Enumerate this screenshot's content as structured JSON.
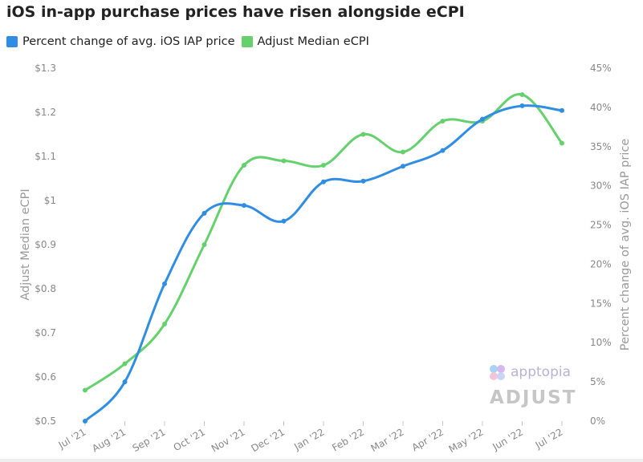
{
  "chart_data": {
    "type": "line",
    "title": "iOS in-app purchase prices have risen alongside eCPI",
    "categories": [
      "Jul '21",
      "Aug '21",
      "Sep '21",
      "Oct '21",
      "Nov '21",
      "Dec '21",
      "Jan '22",
      "Feb '22",
      "Mar '22",
      "Apr '22",
      "May '22",
      "Jun '22",
      "Jul '22"
    ],
    "series": [
      {
        "name": "Percent change of avg. iOS IAP price",
        "axis": "right",
        "color": "#2f8de4",
        "values": [
          0,
          5,
          17.5,
          26.5,
          27.5,
          25.5,
          30.5,
          30.6,
          32.5,
          34.5,
          38.5,
          40.2,
          39.6
        ]
      },
      {
        "name": "Adjust Median eCPI",
        "axis": "left",
        "color": "#65d16d",
        "values": [
          0.57,
          0.63,
          0.72,
          0.9,
          1.08,
          1.09,
          1.08,
          1.15,
          1.11,
          1.18,
          1.18,
          1.24,
          1.13
        ]
      }
    ],
    "ylabel": "Adjust Median eCPI",
    "ylim": [
      0.5,
      1.3
    ],
    "yticks": [
      "$0.5",
      "$0.6",
      "$0.7",
      "$0.8",
      "$0.9",
      "$1",
      "$1.1",
      "$1.2",
      "$1.3"
    ],
    "y2label": "Percent change of avg. iOS IAP price",
    "y2lim": [
      0,
      45
    ],
    "y2ticks": [
      "0%",
      "5%",
      "10%",
      "15%",
      "20%",
      "25%",
      "30%",
      "35%",
      "40%",
      "45%"
    ],
    "grid": false,
    "legend": "top-left"
  },
  "logos": {
    "apptopia": "apptopia",
    "adjust": "ADJUST"
  }
}
